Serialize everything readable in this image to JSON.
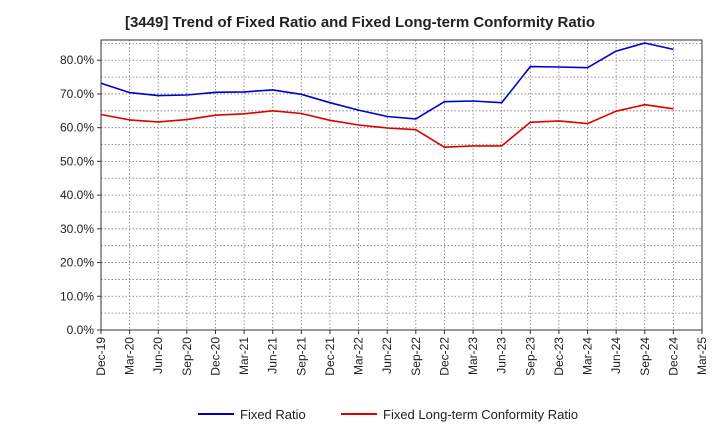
{
  "chart_data": {
    "type": "line",
    "title": "[3449]  Trend of Fixed Ratio and Fixed Long-term Conformity Ratio",
    "x": [
      "Dec-19",
      "Mar-20",
      "Jun-20",
      "Sep-20",
      "Dec-20",
      "Mar-21",
      "Jun-21",
      "Sep-21",
      "Dec-21",
      "Mar-22",
      "Jun-22",
      "Sep-22",
      "Dec-22",
      "Mar-23",
      "Jun-23",
      "Sep-23",
      "Dec-23",
      "Mar-24",
      "Jun-24",
      "Sep-24",
      "Dec-24",
      "Mar-25"
    ],
    "y_ticks": [
      "0.0%",
      "10.0%",
      "20.0%",
      "30.0%",
      "40.0%",
      "50.0%",
      "60.0%",
      "70.0%",
      "80.0%"
    ],
    "ylim": [
      0,
      86
    ],
    "grid": true,
    "legend_position": "bottom",
    "series": [
      {
        "name": "Fixed Ratio",
        "color": "#0000cc",
        "values": [
          73.2,
          70.4,
          69.5,
          69.7,
          70.5,
          70.6,
          71.2,
          69.9,
          67.4,
          65.2,
          63.3,
          62.6,
          67.7,
          67.9,
          67.4,
          78.1,
          78.0,
          77.8,
          82.7,
          85.1,
          83.2,
          null
        ]
      },
      {
        "name": "Fixed Long-term Conformity Ratio",
        "color": "#dd0000",
        "values": [
          63.9,
          62.3,
          61.7,
          62.4,
          63.7,
          64.1,
          65.0,
          64.2,
          62.2,
          60.8,
          59.9,
          59.4,
          54.2,
          54.6,
          54.6,
          61.6,
          62.0,
          61.2,
          64.9,
          66.8,
          65.6,
          null
        ]
      }
    ]
  }
}
